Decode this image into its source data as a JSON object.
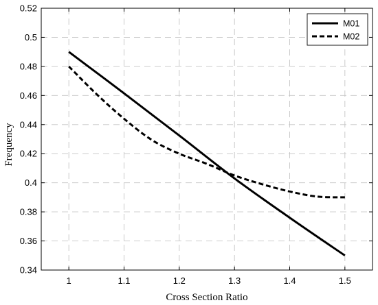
{
  "chart_data": {
    "type": "line",
    "title": "",
    "xlabel": "Cross Section Ratio",
    "ylabel": "Frequency",
    "xlim": [
      0.95,
      1.55
    ],
    "ylim": [
      0.34,
      0.52
    ],
    "xticks": [
      1,
      1.1,
      1.2,
      1.3,
      1.4,
      1.5
    ],
    "xtick_labels": [
      "1",
      "1.1",
      "1.2",
      "1.3",
      "1.4",
      "1.5"
    ],
    "yticks": [
      0.34,
      0.36,
      0.38,
      0.4,
      0.42,
      0.44,
      0.46,
      0.48,
      0.5,
      0.52
    ],
    "ytick_labels": [
      "0.34",
      "0.36",
      "0.38",
      "0.4",
      "0.42",
      "0.44",
      "0.46",
      "0.48",
      "0.5",
      "0.52"
    ],
    "grid": true,
    "legend_position": "top-right",
    "series": [
      {
        "name": "M01",
        "style": "solid",
        "color": "#000000",
        "x": [
          1.0,
          1.1,
          1.2,
          1.3,
          1.4,
          1.5
        ],
        "y": [
          0.49,
          0.4615,
          0.4325,
          0.403,
          0.376,
          0.35
        ]
      },
      {
        "name": "M02",
        "style": "dashed",
        "color": "#000000",
        "x": [
          1.0,
          1.05,
          1.1,
          1.15,
          1.2,
          1.25,
          1.3,
          1.35,
          1.4,
          1.45,
          1.5
        ],
        "y": [
          0.48,
          0.461,
          0.444,
          0.4295,
          0.42,
          0.413,
          0.405,
          0.399,
          0.394,
          0.3905,
          0.39
        ]
      }
    ]
  }
}
